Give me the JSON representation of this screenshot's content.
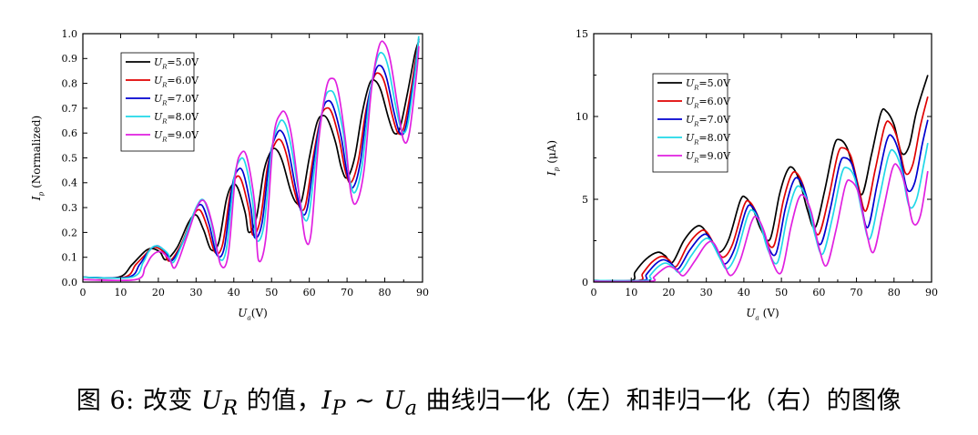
{
  "caption": {
    "prefix": "图 6: 改变 ",
    "u": "U",
    "r": "R",
    "mid": " 的值，",
    "i": "I",
    "p": "P",
    "tilde": " ~ ",
    "u2": "U",
    "a": "a",
    "suffix": " 曲线归一化（左）和非归一化（右）的图像"
  },
  "chart_data": [
    {
      "type": "line",
      "ylabel_main": "I",
      "ylabel_sub": "p",
      "ylabel_rest": " (Normalized)",
      "xlabel_main": "U",
      "xlabel_sub": "a",
      "xlabel_rest": "(V)",
      "xlim": [
        0,
        90
      ],
      "ylim": [
        0,
        1.0
      ],
      "xticks": [
        "0",
        "10",
        "20",
        "30",
        "40",
        "50",
        "60",
        "70",
        "80",
        "90"
      ],
      "yticks": [
        "0.0",
        "0.1",
        "0.2",
        "0.3",
        "0.4",
        "0.5",
        "0.6",
        "0.7",
        "0.8",
        "0.9",
        "1.0"
      ],
      "legend_position": "top-left",
      "series": [
        {
          "name": "UR=5.0V",
          "label_main": "U",
          "label_sub": "R",
          "label_rest": "=5.0V",
          "color": "#000000",
          "x": [
            0,
            9.5,
            13,
            15.5,
            17,
            18.5,
            20.5,
            22,
            25,
            28,
            30,
            32,
            34,
            36,
            38,
            39.5,
            41,
            43,
            44,
            46,
            48,
            50,
            51.5,
            53,
            55,
            56.5,
            58,
            60,
            62,
            63.5,
            65,
            67,
            68.5,
            70,
            72,
            74,
            76,
            77.5,
            79,
            81,
            82.5,
            84,
            86,
            88,
            89
          ],
          "y": [
            0.02,
            0.02,
            0.07,
            0.11,
            0.13,
            0.135,
            0.12,
            0.09,
            0.14,
            0.24,
            0.27,
            0.21,
            0.13,
            0.16,
            0.33,
            0.39,
            0.38,
            0.28,
            0.2,
            0.26,
            0.45,
            0.53,
            0.53,
            0.48,
            0.37,
            0.32,
            0.33,
            0.5,
            0.64,
            0.67,
            0.65,
            0.56,
            0.46,
            0.42,
            0.5,
            0.68,
            0.8,
            0.81,
            0.77,
            0.66,
            0.6,
            0.62,
            0.76,
            0.92,
            0.97
          ]
        },
        {
          "name": "UR=6.0V",
          "label_main": "U",
          "label_sub": "R",
          "label_rest": "=6.0V",
          "color": "#e00000",
          "x": [
            0,
            11,
            14,
            16.5,
            18,
            19.5,
            21.5,
            23,
            26,
            29,
            31,
            33,
            35,
            37,
            39,
            40.5,
            42,
            44,
            45,
            47,
            49,
            51,
            52.5,
            54,
            56,
            57.5,
            59,
            61,
            63,
            64.5,
            66,
            68,
            69.5,
            71,
            73,
            75,
            77,
            78.5,
            80,
            82,
            83.5,
            85,
            87,
            89
          ],
          "y": [
            0.02,
            0.02,
            0.07,
            0.11,
            0.135,
            0.14,
            0.12,
            0.085,
            0.15,
            0.26,
            0.29,
            0.22,
            0.12,
            0.15,
            0.35,
            0.42,
            0.41,
            0.29,
            0.19,
            0.25,
            0.47,
            0.56,
            0.57,
            0.51,
            0.37,
            0.3,
            0.31,
            0.5,
            0.66,
            0.7,
            0.68,
            0.57,
            0.45,
            0.4,
            0.49,
            0.69,
            0.82,
            0.84,
            0.8,
            0.67,
            0.6,
            0.62,
            0.78,
            0.98
          ]
        },
        {
          "name": "UR=7.0V",
          "label_main": "U",
          "label_sub": "R",
          "label_rest": "=7.0V",
          "color": "#0000d0",
          "x": [
            0,
            12,
            15,
            17,
            18.5,
            20,
            22,
            23.5,
            26.5,
            29.5,
            31.5,
            33.5,
            35.5,
            37.5,
            39.5,
            41,
            42.5,
            44.5,
            45.5,
            47.5,
            49.5,
            51.5,
            53,
            54.5,
            56.5,
            58,
            59.5,
            61.5,
            63.5,
            65,
            66.5,
            68.5,
            70,
            71.5,
            73.5,
            75.5,
            77.5,
            79,
            80.5,
            82.5,
            84,
            85.5,
            87.5,
            89
          ],
          "y": [
            0.02,
            0.02,
            0.07,
            0.115,
            0.14,
            0.145,
            0.12,
            0.085,
            0.16,
            0.28,
            0.31,
            0.23,
            0.11,
            0.14,
            0.38,
            0.45,
            0.44,
            0.3,
            0.18,
            0.24,
            0.5,
            0.6,
            0.6,
            0.53,
            0.37,
            0.28,
            0.3,
            0.52,
            0.69,
            0.73,
            0.7,
            0.58,
            0.44,
            0.38,
            0.48,
            0.72,
            0.85,
            0.87,
            0.82,
            0.68,
            0.6,
            0.62,
            0.8,
            0.98
          ]
        },
        {
          "name": "UR=8.0V",
          "label_main": "U",
          "label_sub": "R",
          "label_rest": "=8.0V",
          "color": "#20d8e8",
          "x": [
            0,
            13,
            16,
            17.5,
            19,
            20.5,
            22.5,
            24,
            27,
            30,
            32,
            34,
            36,
            38,
            40,
            41.5,
            43,
            45,
            46,
            48,
            50,
            52,
            53.5,
            55,
            57,
            58.5,
            60,
            62,
            64,
            65.5,
            67,
            69,
            70.5,
            72,
            74,
            76,
            78,
            79.5,
            81,
            83,
            84.5,
            86,
            88,
            89
          ],
          "y": [
            0.02,
            0.02,
            0.08,
            0.125,
            0.145,
            0.14,
            0.115,
            0.08,
            0.18,
            0.3,
            0.33,
            0.24,
            0.1,
            0.13,
            0.41,
            0.49,
            0.48,
            0.32,
            0.17,
            0.23,
            0.53,
            0.64,
            0.64,
            0.56,
            0.38,
            0.26,
            0.28,
            0.54,
            0.73,
            0.77,
            0.74,
            0.6,
            0.43,
            0.36,
            0.47,
            0.75,
            0.9,
            0.92,
            0.86,
            0.7,
            0.61,
            0.63,
            0.84,
            0.99
          ]
        },
        {
          "name": "UR=9.0V",
          "label_main": "U",
          "label_sub": "R",
          "label_rest": "=9.0V",
          "color": "#e020e0",
          "x": [
            0,
            14,
            16.5,
            18,
            19.5,
            21,
            23,
            24.5,
            27.5,
            30.5,
            32.5,
            34.5,
            36.5,
            38.5,
            40.5,
            42,
            43.5,
            45.5,
            46.5,
            48.5,
            50.5,
            52.5,
            54,
            55.5,
            57.5,
            59,
            60.5,
            62.5,
            64.5,
            66,
            67.5,
            69.5,
            71,
            72.5,
            74.5,
            76.5,
            78.5,
            80,
            81.5,
            83.5,
            85,
            86.5,
            88.5,
            89
          ],
          "y": [
            0.01,
            0.01,
            0.06,
            0.1,
            0.12,
            0.12,
            0.09,
            0.06,
            0.18,
            0.31,
            0.32,
            0.22,
            0.07,
            0.11,
            0.44,
            0.52,
            0.5,
            0.32,
            0.09,
            0.18,
            0.58,
            0.68,
            0.67,
            0.57,
            0.33,
            0.17,
            0.2,
            0.57,
            0.78,
            0.82,
            0.78,
            0.58,
            0.36,
            0.32,
            0.45,
            0.78,
            0.95,
            0.96,
            0.89,
            0.7,
            0.57,
            0.6,
            0.85,
            0.95
          ]
        }
      ]
    },
    {
      "type": "line",
      "ylabel_main": "I",
      "ylabel_sub": "p",
      "ylabel_rest": " (μA)",
      "xlabel_main": "U",
      "xlabel_sub": "a",
      "xlabel_rest": " (V)",
      "xlim": [
        0,
        90
      ],
      "ylim": [
        0,
        15
      ],
      "xticks": [
        "0",
        "10",
        "20",
        "30",
        "40",
        "50",
        "60",
        "70",
        "80",
        "90"
      ],
      "yticks": [
        "0",
        "5",
        "10",
        "15"
      ],
      "legend_position": "top-left",
      "series": [
        {
          "name": "UR=5.0V",
          "label_main": "U",
          "label_sub": "R",
          "label_rest": "=5.0V",
          "color": "#000000",
          "x": [
            0,
            10,
            11,
            14,
            17,
            19,
            21,
            24,
            27,
            29,
            31.5,
            33.5,
            36,
            39,
            40.5,
            42.5,
            44.5,
            47,
            49.5,
            51.5,
            53,
            55,
            57,
            59,
            61.5,
            64,
            65.5,
            67.5,
            69.5,
            71.5,
            74,
            76.5,
            78,
            80,
            82,
            84,
            86,
            89
          ],
          "y": [
            0.1,
            0.1,
            0.6,
            1.4,
            1.8,
            1.6,
            1.2,
            2.5,
            3.3,
            3.3,
            2.4,
            1.8,
            2.6,
            4.9,
            5.1,
            4.4,
            3.2,
            2.6,
            5.3,
            6.7,
            6.9,
            6.0,
            4.3,
            3.3,
            5.5,
            8.2,
            8.6,
            8.1,
            6.6,
            5.3,
            7.7,
            10.2,
            10.3,
            9.5,
            7.8,
            8.2,
            10.3,
            12.5
          ]
        },
        {
          "name": "UR=6.0V",
          "label_main": "U",
          "label_sub": "R",
          "label_rest": "=6.0V",
          "color": "#e00000",
          "x": [
            0,
            12,
            13,
            15.5,
            18,
            20,
            22,
            25,
            28,
            30,
            32.5,
            34.5,
            37,
            40,
            41.5,
            43.5,
            45.5,
            48,
            50.5,
            52.5,
            54,
            56,
            58,
            60,
            62.5,
            65,
            66.5,
            68.5,
            70.5,
            72.5,
            75,
            77.5,
            79,
            81,
            83,
            85,
            87,
            89
          ],
          "y": [
            0.1,
            0.1,
            0.5,
            1.2,
            1.55,
            1.35,
            0.95,
            2.2,
            3.0,
            3.05,
            2.1,
            1.5,
            2.3,
            4.6,
            4.85,
            4.1,
            2.8,
            2.2,
            4.9,
            6.4,
            6.6,
            5.7,
            3.8,
            2.9,
            5.0,
            7.7,
            8.1,
            7.6,
            5.8,
            4.3,
            6.8,
            9.4,
            9.6,
            8.6,
            6.6,
            7.1,
            9.4,
            11.2
          ]
        },
        {
          "name": "UR=7.0V",
          "label_main": "U",
          "label_sub": "R",
          "label_rest": "=7.0V",
          "color": "#0000d0",
          "x": [
            0,
            13,
            14,
            16.5,
            18.5,
            20.5,
            22.5,
            25.5,
            28.5,
            30.5,
            33,
            35,
            37.5,
            40.5,
            42,
            44,
            46,
            48.5,
            51,
            53,
            54.5,
            56.5,
            58.5,
            60.5,
            63,
            65.5,
            67,
            69,
            71,
            73,
            75.5,
            78,
            79.5,
            81.5,
            83.5,
            85.5,
            87.5,
            89
          ],
          "y": [
            0.1,
            0.1,
            0.45,
            1.1,
            1.35,
            1.15,
            0.8,
            1.9,
            2.75,
            2.8,
            1.8,
            1.1,
            2.0,
            4.3,
            4.6,
            3.8,
            2.4,
            1.7,
            4.4,
            6.0,
            6.25,
            5.3,
            3.3,
            2.3,
            4.4,
            7.1,
            7.5,
            7.0,
            5.0,
            3.3,
            5.9,
            8.5,
            8.8,
            7.7,
            5.6,
            6.0,
            8.3,
            9.8
          ]
        },
        {
          "name": "UR=8.0V",
          "label_main": "U",
          "label_sub": "R",
          "label_rest": "=8.0V",
          "color": "#20d8e8",
          "x": [
            0,
            14,
            15,
            17,
            19,
            21,
            23,
            26,
            29,
            31,
            33.5,
            35.5,
            38,
            41,
            42.5,
            44.5,
            46.5,
            49,
            51.5,
            53.5,
            55,
            57,
            59,
            61,
            63.5,
            66,
            67.5,
            69.5,
            71.5,
            73.5,
            76,
            78.5,
            80,
            82,
            84,
            86,
            88,
            89
          ],
          "y": [
            0.1,
            0.1,
            0.4,
            0.9,
            1.15,
            0.95,
            0.6,
            1.6,
            2.5,
            2.55,
            1.5,
            0.8,
            1.7,
            4.0,
            4.3,
            3.4,
            1.9,
            1.2,
            3.9,
            5.5,
            5.75,
            4.8,
            2.8,
            1.7,
            3.8,
            6.5,
            6.9,
            6.3,
            4.2,
            2.6,
            5.0,
            7.6,
            7.9,
            6.8,
            4.6,
            5.0,
            7.2,
            8.4
          ]
        },
        {
          "name": "UR=9.0V",
          "label_main": "U",
          "label_sub": "R",
          "label_rest": "=9.0V",
          "color": "#e020e0",
          "x": [
            0,
            15,
            16,
            18,
            20,
            22,
            24,
            27,
            30,
            32,
            34.5,
            36.5,
            39,
            42,
            43.5,
            45.5,
            47.5,
            50,
            52.5,
            54.5,
            56,
            58,
            60,
            62,
            64.5,
            67,
            68.5,
            70.5,
            72.5,
            74.5,
            77,
            79.5,
            81,
            83,
            85,
            87,
            89
          ],
          "y": [
            0.05,
            0.05,
            0.3,
            0.7,
            0.95,
            0.75,
            0.4,
            1.3,
            2.3,
            2.35,
            1.2,
            0.4,
            1.3,
            3.6,
            3.9,
            3.0,
            1.3,
            0.6,
            3.3,
            5.0,
            5.2,
            4.2,
            2.1,
            1.0,
            3.1,
            5.8,
            6.1,
            5.4,
            3.2,
            1.8,
            4.2,
            6.8,
            7.0,
            5.8,
            3.6,
            4.0,
            6.7
          ]
        }
      ]
    }
  ]
}
